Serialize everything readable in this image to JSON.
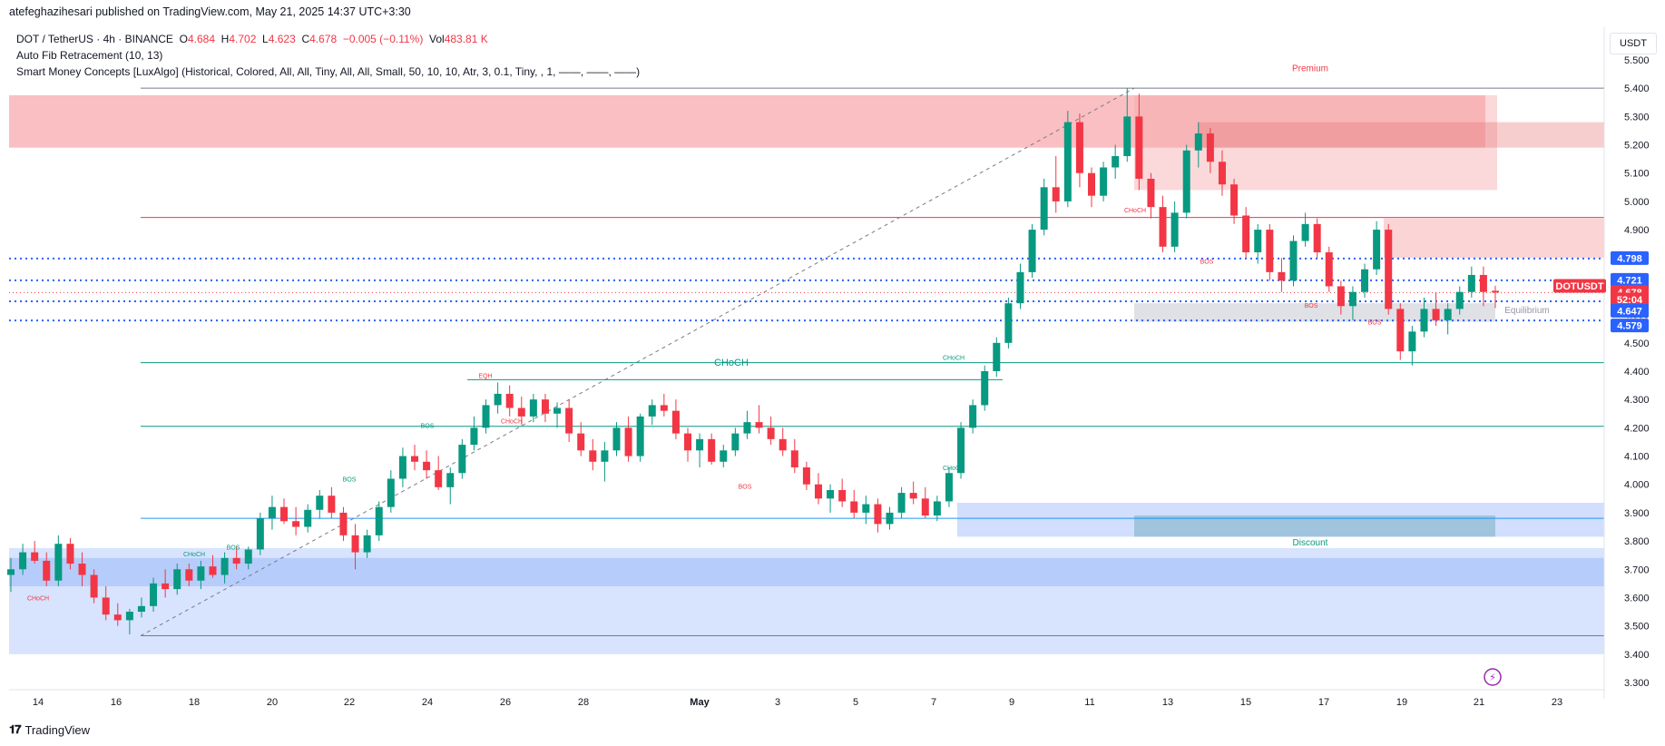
{
  "header": {
    "published_by": "atefeghazihesari published on TradingView.com, May 21, 2025 14:37 UTC+3:30"
  },
  "legend": {
    "symbol": "DOT / TetherUS · 4h · BINANCE",
    "open_label": "O",
    "open": "4.684",
    "high_label": "H",
    "high": "4.702",
    "low_label": "L",
    "low": "4.623",
    "close_label": "C",
    "close": "4.678",
    "change": "−0.005 (−0.11%)",
    "vol_label": "Vol",
    "vol": "483.81 K",
    "indicator1": "Auto Fib Retracement (10, 13)",
    "indicator2": "Smart Money Concepts [LuxAlgo] (Historical, Colored, All, All, Tiny, All, All, Small, 50, 10, 10, Atr, 3, 0.1, Tiny, , 1, ——, ——, ——)"
  },
  "currency_label": "USDT",
  "footer": {
    "brand": "TradingView"
  },
  "colors": {
    "up": "#089981",
    "down": "#f23645",
    "accent": "#2962ff",
    "premium_zone": "#f7a9ae",
    "discount_zone": "#b2c8fb"
  },
  "chart_data": {
    "type": "candlestick",
    "symbol": "DOTUSDT",
    "interval": "4h",
    "ylim": [
      3.3,
      5.6
    ],
    "y_ticks": [
      "5.500",
      "5.400",
      "5.300",
      "5.200",
      "5.100",
      "5.000",
      "4.900",
      "4.800",
      "4.700",
      "4.600",
      "4.500",
      "4.400",
      "4.300",
      "4.200",
      "4.100",
      "4.000",
      "3.900",
      "3.800",
      "3.700",
      "3.600",
      "3.500",
      "3.400",
      "3.300"
    ],
    "x_ticks": [
      "14",
      "16",
      "18",
      "20",
      "22",
      "24",
      "26",
      "28",
      "May",
      "3",
      "5",
      "7",
      "9",
      "11",
      "13",
      "15",
      "17",
      "19",
      "21",
      "23"
    ],
    "price_badges": [
      {
        "label": "4.798",
        "value": 4.798,
        "color": "#2962ff"
      },
      {
        "label": "4.721",
        "value": 4.721,
        "color": "#2962ff"
      },
      {
        "label": "DOTUSDT",
        "value": 4.7,
        "color": "#f23645"
      },
      {
        "label": "4.678",
        "value": 4.678,
        "color": "#f23645"
      },
      {
        "label": "52:04",
        "value": 4.652,
        "color": "#f23645"
      },
      {
        "label": "4.647",
        "value": 4.612,
        "color": "#2962ff"
      },
      {
        "label": "4.579",
        "value": 4.56,
        "color": "#2962ff"
      }
    ],
    "zone_labels": {
      "premium": "Premium",
      "equilibrium": "Equilibrium",
      "discount": "Discount"
    },
    "annotations": [
      {
        "text": "CHoCH",
        "x": "May 11",
        "y": 4.962,
        "color": "#f23645"
      },
      {
        "text": "BOS",
        "x": "May 14",
        "y": 4.78,
        "color": "#f23645"
      },
      {
        "text": "BOS",
        "x": "May 17",
        "y": 4.625,
        "color": "#f23645"
      },
      {
        "text": "BOS",
        "x": "May 19",
        "y": 4.565,
        "color": "#f23645"
      },
      {
        "text": "CHoCH",
        "x": "May 7",
        "y": 4.44,
        "color": "#089981"
      },
      {
        "text": "EQH",
        "x": "Apr 25",
        "y": 4.376,
        "color": "#f23645"
      },
      {
        "text": "CHoCH",
        "x": "Apr 26",
        "y": 4.215,
        "color": "#f23645"
      },
      {
        "text": "BOS",
        "x": "Apr 24",
        "y": 4.2,
        "color": "#089981"
      },
      {
        "text": "BOS",
        "x": "May 2",
        "y": 3.985,
        "color": "#f23645"
      },
      {
        "text": "CHoCH",
        "x": "May 7",
        "y": 4.05,
        "color": "#089981"
      },
      {
        "text": "BOS",
        "x": "Apr 22",
        "y": 4.01,
        "color": "#089981"
      },
      {
        "text": "BOS",
        "x": "Apr 19",
        "y": 3.77,
        "color": "#089981"
      },
      {
        "text": "CHoCH",
        "x": "Apr 18",
        "y": 3.745,
        "color": "#089981"
      },
      {
        "text": "CHoCH",
        "x": "Apr 14",
        "y": 3.59,
        "color": "#f23645"
      }
    ],
    "big_choch": {
      "text": "CHoCH",
      "y": 4.42
    },
    "fib_levels": [
      {
        "value": 5.4,
        "color": "#787b86"
      },
      {
        "value": 4.943,
        "color": "#f23645"
      },
      {
        "value": 4.43,
        "color": "#089981"
      },
      {
        "value": 4.205,
        "color": "#089981"
      },
      {
        "value": 3.88,
        "color": "#2196f3"
      },
      {
        "value": 3.465,
        "color": "#787b86"
      }
    ],
    "dotted_levels": [
      4.798,
      4.721,
      4.647,
      4.579
    ],
    "candles": [
      [
        3.68,
        3.74,
        3.62,
        3.7
      ],
      [
        3.7,
        3.79,
        3.68,
        3.76
      ],
      [
        3.76,
        3.8,
        3.72,
        3.73
      ],
      [
        3.73,
        3.76,
        3.64,
        3.66
      ],
      [
        3.66,
        3.82,
        3.64,
        3.79
      ],
      [
        3.79,
        3.81,
        3.7,
        3.72
      ],
      [
        3.72,
        3.76,
        3.64,
        3.68
      ],
      [
        3.68,
        3.7,
        3.58,
        3.6
      ],
      [
        3.6,
        3.64,
        3.52,
        3.54
      ],
      [
        3.54,
        3.58,
        3.5,
        3.52
      ],
      [
        3.52,
        3.56,
        3.47,
        3.55
      ],
      [
        3.55,
        3.6,
        3.53,
        3.57
      ],
      [
        3.57,
        3.67,
        3.55,
        3.65
      ],
      [
        3.65,
        3.7,
        3.6,
        3.63
      ],
      [
        3.63,
        3.72,
        3.61,
        3.7
      ],
      [
        3.7,
        3.72,
        3.64,
        3.66
      ],
      [
        3.66,
        3.73,
        3.63,
        3.71
      ],
      [
        3.71,
        3.75,
        3.67,
        3.68
      ],
      [
        3.68,
        3.76,
        3.65,
        3.74
      ],
      [
        3.74,
        3.78,
        3.7,
        3.72
      ],
      [
        3.72,
        3.78,
        3.7,
        3.77
      ],
      [
        3.77,
        3.9,
        3.75,
        3.88
      ],
      [
        3.88,
        3.96,
        3.84,
        3.92
      ],
      [
        3.92,
        3.95,
        3.86,
        3.87
      ],
      [
        3.87,
        3.92,
        3.82,
        3.85
      ],
      [
        3.85,
        3.93,
        3.83,
        3.91
      ],
      [
        3.91,
        3.98,
        3.88,
        3.96
      ],
      [
        3.96,
        3.99,
        3.88,
        3.9
      ],
      [
        3.9,
        3.92,
        3.8,
        3.82
      ],
      [
        3.82,
        3.86,
        3.7,
        3.76
      ],
      [
        3.76,
        3.84,
        3.74,
        3.82
      ],
      [
        3.82,
        3.94,
        3.8,
        3.92
      ],
      [
        3.92,
        4.05,
        3.9,
        4.02
      ],
      [
        4.02,
        4.13,
        3.99,
        4.1
      ],
      [
        4.1,
        4.14,
        4.05,
        4.08
      ],
      [
        4.08,
        4.12,
        4.02,
        4.05
      ],
      [
        4.05,
        4.1,
        3.98,
        3.99
      ],
      [
        3.99,
        4.06,
        3.93,
        4.04
      ],
      [
        4.04,
        4.16,
        4.02,
        4.14
      ],
      [
        4.14,
        4.24,
        4.12,
        4.2
      ],
      [
        4.2,
        4.3,
        4.18,
        4.28
      ],
      [
        4.28,
        4.36,
        4.25,
        4.32
      ],
      [
        4.32,
        4.35,
        4.24,
        4.27
      ],
      [
        4.27,
        4.31,
        4.21,
        4.24
      ],
      [
        4.24,
        4.32,
        4.22,
        4.3
      ],
      [
        4.3,
        4.32,
        4.22,
        4.25
      ],
      [
        4.25,
        4.29,
        4.2,
        4.27
      ],
      [
        4.27,
        4.3,
        4.15,
        4.18
      ],
      [
        4.18,
        4.22,
        4.1,
        4.12
      ],
      [
        4.12,
        4.16,
        4.05,
        4.08
      ],
      [
        4.08,
        4.15,
        4.01,
        4.12
      ],
      [
        4.12,
        4.22,
        4.1,
        4.2
      ],
      [
        4.2,
        4.24,
        4.08,
        4.1
      ],
      [
        4.1,
        4.25,
        4.08,
        4.24
      ],
      [
        4.24,
        4.3,
        4.21,
        4.28
      ],
      [
        4.28,
        4.32,
        4.24,
        4.26
      ],
      [
        4.26,
        4.3,
        4.16,
        4.18
      ],
      [
        4.18,
        4.2,
        4.08,
        4.12
      ],
      [
        4.12,
        4.18,
        4.06,
        4.16
      ],
      [
        4.16,
        4.18,
        4.07,
        4.08
      ],
      [
        4.08,
        4.14,
        4.06,
        4.12
      ],
      [
        4.12,
        4.2,
        4.1,
        4.18
      ],
      [
        4.18,
        4.26,
        4.16,
        4.22
      ],
      [
        4.22,
        4.28,
        4.18,
        4.2
      ],
      [
        4.2,
        4.24,
        4.14,
        4.16
      ],
      [
        4.16,
        4.2,
        4.1,
        4.12
      ],
      [
        4.12,
        4.16,
        4.04,
        4.06
      ],
      [
        4.06,
        4.08,
        3.98,
        4.0
      ],
      [
        4.0,
        4.04,
        3.93,
        3.95
      ],
      [
        3.95,
        4.0,
        3.9,
        3.98
      ],
      [
        3.98,
        4.02,
        3.92,
        3.94
      ],
      [
        3.94,
        3.98,
        3.88,
        3.9
      ],
      [
        3.9,
        3.96,
        3.86,
        3.93
      ],
      [
        3.93,
        3.95,
        3.83,
        3.86
      ],
      [
        3.86,
        3.92,
        3.84,
        3.9
      ],
      [
        3.9,
        3.99,
        3.88,
        3.97
      ],
      [
        3.97,
        4.01,
        3.93,
        3.95
      ],
      [
        3.95,
        3.99,
        3.88,
        3.89
      ],
      [
        3.89,
        3.96,
        3.87,
        3.94
      ],
      [
        3.94,
        4.06,
        3.92,
        4.04
      ],
      [
        4.04,
        4.22,
        4.02,
        4.2
      ],
      [
        4.2,
        4.3,
        4.18,
        4.28
      ],
      [
        4.28,
        4.42,
        4.26,
        4.4
      ],
      [
        4.4,
        4.52,
        4.38,
        4.5
      ],
      [
        4.5,
        4.66,
        4.48,
        4.64
      ],
      [
        4.64,
        4.78,
        4.62,
        4.75
      ],
      [
        4.75,
        4.92,
        4.73,
        4.9
      ],
      [
        4.9,
        5.08,
        4.88,
        5.05
      ],
      [
        5.05,
        5.16,
        4.96,
        5.0
      ],
      [
        5.0,
        5.32,
        4.98,
        5.28
      ],
      [
        5.28,
        5.31,
        5.05,
        5.1
      ],
      [
        5.1,
        5.12,
        4.98,
        5.02
      ],
      [
        5.02,
        5.14,
        5.0,
        5.12
      ],
      [
        5.12,
        5.2,
        5.08,
        5.16
      ],
      [
        5.16,
        5.4,
        5.14,
        5.3
      ],
      [
        5.3,
        5.38,
        5.04,
        5.08
      ],
      [
        5.08,
        5.1,
        4.94,
        4.98
      ],
      [
        4.98,
        5.02,
        4.82,
        4.84
      ],
      [
        4.84,
        5.0,
        4.82,
        4.96
      ],
      [
        4.96,
        5.2,
        4.94,
        5.18
      ],
      [
        5.18,
        5.28,
        5.12,
        5.24
      ],
      [
        5.24,
        5.26,
        5.1,
        5.14
      ],
      [
        5.14,
        5.18,
        5.02,
        5.06
      ],
      [
        5.06,
        5.08,
        4.92,
        4.95
      ],
      [
        4.95,
        4.98,
        4.8,
        4.82
      ],
      [
        4.82,
        4.92,
        4.78,
        4.9
      ],
      [
        4.9,
        4.92,
        4.72,
        4.75
      ],
      [
        4.75,
        4.8,
        4.68,
        4.72
      ],
      [
        4.72,
        4.88,
        4.7,
        4.86
      ],
      [
        4.86,
        4.96,
        4.84,
        4.92
      ],
      [
        4.92,
        4.94,
        4.8,
        4.82
      ],
      [
        4.82,
        4.84,
        4.68,
        4.7
      ],
      [
        4.7,
        4.72,
        4.6,
        4.63
      ],
      [
        4.63,
        4.7,
        4.58,
        4.68
      ],
      [
        4.68,
        4.78,
        4.66,
        4.76
      ],
      [
        4.76,
        4.93,
        4.74,
        4.9
      ],
      [
        4.9,
        4.92,
        4.6,
        4.62
      ],
      [
        4.62,
        4.64,
        4.44,
        4.47
      ],
      [
        4.47,
        4.56,
        4.42,
        4.54
      ],
      [
        4.54,
        4.66,
        4.52,
        4.62
      ],
      [
        4.62,
        4.68,
        4.56,
        4.58
      ],
      [
        4.58,
        4.64,
        4.53,
        4.62
      ],
      [
        4.62,
        4.7,
        4.6,
        4.68
      ],
      [
        4.68,
        4.77,
        4.66,
        4.74
      ],
      [
        4.74,
        4.77,
        4.63,
        4.68
      ],
      [
        4.684,
        4.702,
        4.623,
        4.678
      ]
    ]
  }
}
